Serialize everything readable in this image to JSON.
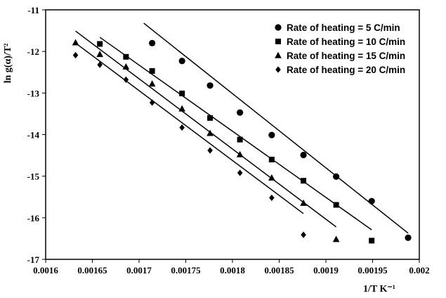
{
  "chart_data": {
    "type": "scatter",
    "xlabel": "1/T K⁻¹",
    "ylabel": "ln g(α)/T²",
    "xlim": [
      0.0016,
      0.002
    ],
    "ylim": [
      -17,
      -11
    ],
    "x_ticks": [
      "0.0016",
      "0.00165",
      "0.0017",
      "0.00175",
      "0.0018",
      "0.00185",
      "0.0019",
      "0.00195",
      "0.002"
    ],
    "y_ticks": [
      "-11",
      "-12",
      "-13",
      "-14",
      "-15",
      "-16",
      "-17"
    ],
    "grid": false,
    "legend_position": "top-right",
    "series": [
      {
        "name": "Rate of heating = 5 C/min",
        "marker": "circle",
        "points": [
          [
            0.001714,
            -11.8
          ],
          [
            0.001746,
            -12.23
          ],
          [
            0.001776,
            -12.82
          ],
          [
            0.001808,
            -13.47
          ],
          [
            0.001842,
            -14.01
          ],
          [
            0.001876,
            -14.49
          ],
          [
            0.001911,
            -15.01
          ],
          [
            0.001949,
            -15.6
          ],
          [
            0.001988,
            -16.48
          ]
        ],
        "fit": [
          [
            0.001705,
            -11.32
          ],
          [
            0.001988,
            -16.37
          ]
        ]
      },
      {
        "name": "Rate of heating = 10 C/min",
        "marker": "square",
        "points": [
          [
            0.001658,
            -11.82
          ],
          [
            0.001686,
            -12.13
          ],
          [
            0.001714,
            -12.47
          ],
          [
            0.001746,
            -13.01
          ],
          [
            0.001776,
            -13.6
          ],
          [
            0.001808,
            -14.12
          ],
          [
            0.001842,
            -14.6
          ],
          [
            0.001876,
            -15.11
          ],
          [
            0.001911,
            -15.69
          ],
          [
            0.001949,
            -16.55
          ]
        ],
        "fit": [
          [
            0.001658,
            -11.66
          ],
          [
            0.001949,
            -16.29
          ]
        ]
      },
      {
        "name": "Rate of heating = 15 C/min",
        "marker": "triangle",
        "points": [
          [
            0.001632,
            -11.79
          ],
          [
            0.001658,
            -12.07
          ],
          [
            0.001686,
            -12.37
          ],
          [
            0.001714,
            -12.78
          ],
          [
            0.001746,
            -13.38
          ],
          [
            0.001776,
            -13.97
          ],
          [
            0.001808,
            -14.48
          ],
          [
            0.001842,
            -15.04
          ],
          [
            0.001876,
            -15.65
          ],
          [
            0.001911,
            -16.52
          ]
        ],
        "fit": [
          [
            0.001632,
            -11.51
          ],
          [
            0.001911,
            -16.22
          ]
        ]
      },
      {
        "name": "Rate of heating = 20 C/min",
        "marker": "diamond",
        "points": [
          [
            0.001632,
            -12.09
          ],
          [
            0.001658,
            -12.32
          ],
          [
            0.001686,
            -12.68
          ],
          [
            0.001714,
            -13.23
          ],
          [
            0.001746,
            -13.83
          ],
          [
            0.001776,
            -14.38
          ],
          [
            0.001808,
            -14.92
          ],
          [
            0.001842,
            -15.52
          ],
          [
            0.001876,
            -16.41
          ]
        ],
        "fit": [
          [
            0.001632,
            -11.8
          ],
          [
            0.001876,
            -15.9
          ]
        ]
      }
    ]
  }
}
